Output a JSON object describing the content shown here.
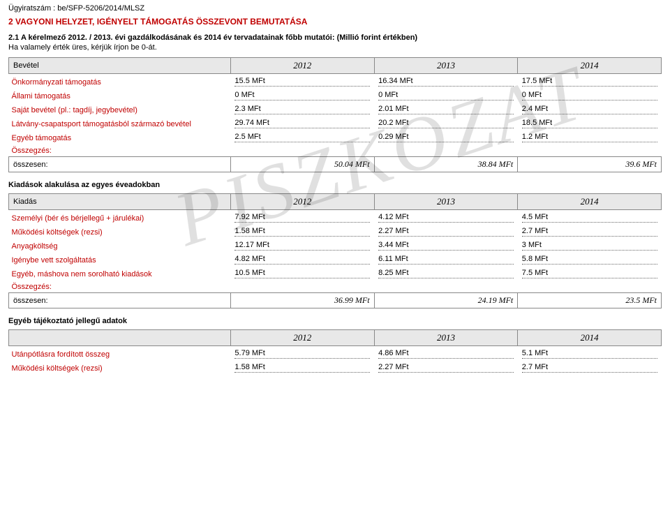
{
  "case_number_prefix": "Ügyiratszám : ",
  "case_number": "be/SFP-5206/2014/MLSZ",
  "section_title": "2 VAGYONI HELYZET, IGÉNYELT TÁMOGATÁS ÖSSZEVONT BEMUTATÁSA",
  "subhead": "2.1 A kérelmező 2012. / 2013. évi gazdálkodásának és 2014 év tervadatainak főbb mutatói: (Millió forint értékben)",
  "subtext": "Ha valamely érték üres, kérjük írjon be 0-át.",
  "watermark": "PISZKOZAT",
  "years": [
    "2012",
    "2013",
    "2014"
  ],
  "bevetel": {
    "header_label": "Bevétel",
    "rows": [
      {
        "label": "Önkormányzati támogatás",
        "vals": [
          "15.5 MFt",
          "16.34 MFt",
          "17.5 MFt"
        ]
      },
      {
        "label": "Állami támogatás",
        "vals": [
          "0 MFt",
          "0 MFt",
          "0 MFt"
        ]
      },
      {
        "label": "Saját bevétel (pl.: tagdíj, jegybevétel)",
        "vals": [
          "2.3 MFt",
          "2.01 MFt",
          "2.4 MFt"
        ]
      },
      {
        "label": "Látvány-csapatsport támogatásból származó bevétel",
        "vals": [
          "29.74 MFt",
          "20.2 MFt",
          "18.5 MFt"
        ]
      },
      {
        "label": "Egyéb támogatás",
        "vals": [
          "2.5 MFt",
          "0.29 MFt",
          "1.2 MFt"
        ]
      }
    ],
    "summary_label": "Összegzés:",
    "total_label": "összesen:",
    "totals": [
      "50.04  MFt",
      "38.84  MFt",
      "39.6  MFt"
    ]
  },
  "kiadas_heading": "Kiadások alakulása az egyes éveadokban",
  "kiadas": {
    "header_label": "Kiadás",
    "rows": [
      {
        "label": "Személyi (bér és bérjellegű + járulékai)",
        "vals": [
          "7.92 MFt",
          "4.12 MFt",
          "4.5 MFt"
        ]
      },
      {
        "label": "Működési költségek (rezsi)",
        "vals": [
          "1.58 MFt",
          "2.27 MFt",
          "2.7 MFt"
        ]
      },
      {
        "label": "Anyagköltség",
        "vals": [
          "12.17 MFt",
          "3.44 MFt",
          "3 MFt"
        ]
      },
      {
        "label": "Igénybe vett szolgáltatás",
        "vals": [
          "4.82 MFt",
          "6.11 MFt",
          "5.8 MFt"
        ]
      },
      {
        "label": "Egyéb, máshova nem sorolható kiadások",
        "vals": [
          "10.5 MFt",
          "8.25 MFt",
          "7.5 MFt"
        ]
      }
    ],
    "summary_label": "Összegzés:",
    "total_label": "összesen:",
    "totals": [
      "36.99  MFt",
      "24.19  MFt",
      "23.5  MFt"
    ]
  },
  "egyeb_heading": "Egyéb tájékoztató jellegű adatok",
  "egyeb": {
    "rows": [
      {
        "label": "Utánpótlásra fordított összeg",
        "vals": [
          "5.79 MFt",
          "4.86 MFt",
          "5.1 MFt"
        ]
      },
      {
        "label": "Működési költségek (rezsi)",
        "vals": [
          "1.58 MFt",
          "2.27 MFt",
          "2.7 MFt"
        ]
      }
    ]
  }
}
